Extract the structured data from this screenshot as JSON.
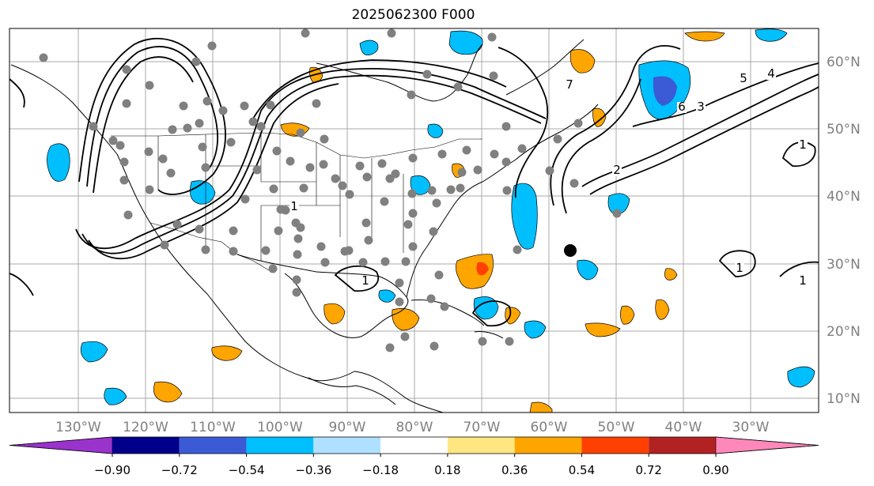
{
  "title": "2025062300 F000",
  "map": {
    "lon_labels": [
      "130°W",
      "120°W",
      "110°W",
      "100°W",
      "90°W",
      "80°W",
      "70°W",
      "60°W",
      "50°W",
      "40°W",
      "30°W"
    ],
    "lat_labels": [
      "60°N",
      "50°N",
      "40°N",
      "30°N",
      "20°N",
      "10°N"
    ],
    "contour_labels": [
      "1",
      "1",
      "1",
      "1",
      "1",
      "2",
      "3",
      "4",
      "5",
      "6",
      "7"
    ],
    "colors": {
      "coast": "#000000",
      "grid": "#aaaaaa",
      "contour": "#000000",
      "obs_dot": "#808080",
      "storm_marker": "#000000"
    }
  },
  "colorbar": {
    "tick_labels": [
      "−0.90",
      "−0.72",
      "−0.54",
      "−0.36",
      "−0.18",
      "0.18",
      "0.36",
      "0.54",
      "0.72",
      "0.90"
    ],
    "colors": [
      "#9933cc",
      "#00008b",
      "#3b5bd6",
      "#00bfff",
      "#b0e0ff",
      "#ffffff",
      "#ffe680",
      "#ffa500",
      "#ff4000",
      "#b22222",
      "#ff88bb"
    ]
  }
}
